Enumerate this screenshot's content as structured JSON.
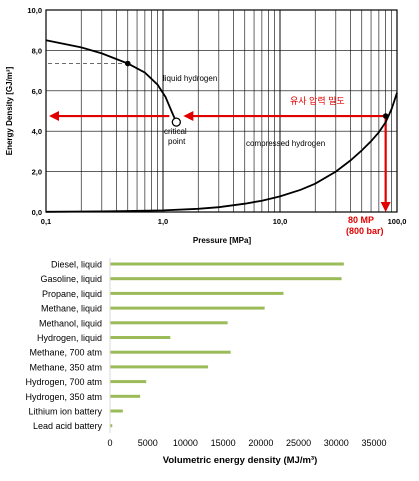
{
  "chart_data": [
    {
      "type": "line",
      "xscale": "log",
      "xlim": [
        0.1,
        100
      ],
      "ylim": [
        0,
        10
      ],
      "xlabel": "Pressure [MPa]",
      "ylabel": "Energy Density [GJ/m³]",
      "xtick_labels": [
        "0,1",
        "1,0",
        "10,0",
        "100,0"
      ],
      "ytick_labels": [
        "0,0",
        "2,0",
        "4,0",
        "6,0",
        "8,0",
        "10,0"
      ],
      "grid": true,
      "series": [
        {
          "name": "liquid hydrogen",
          "x": [
            0.1,
            0.2,
            0.3,
            0.5,
            0.7,
            0.9,
            1.05,
            1.2,
            1.3
          ],
          "y": [
            8.5,
            8.15,
            7.85,
            7.35,
            6.9,
            6.3,
            5.7,
            4.9,
            4.45
          ]
        },
        {
          "name": "compressed hydrogen",
          "x": [
            0.1,
            0.3,
            1,
            2,
            3,
            5,
            7,
            10,
            15,
            20,
            30,
            40,
            50,
            60,
            70,
            80,
            90,
            100
          ],
          "y": [
            0.01,
            0.03,
            0.08,
            0.16,
            0.24,
            0.41,
            0.56,
            0.77,
            1.1,
            1.4,
            2.0,
            2.55,
            3.05,
            3.5,
            3.95,
            4.45,
            5.1,
            5.9
          ]
        }
      ],
      "points": [
        {
          "x": 0.5,
          "y": 7.35,
          "style": "filled"
        },
        {
          "x": 1.3,
          "y": 4.45,
          "style": "open",
          "label": "critical point"
        },
        {
          "x": 80,
          "y": 4.75,
          "style": "filled"
        }
      ],
      "annotations": {
        "liquid_label": "liquid hydrogen",
        "critical_label_1": "critical",
        "critical_label_2": "point",
        "compressed_label": "compressed hydrogen",
        "density_label": "유사 압력 밀도",
        "pressure_label_1": "80 MP",
        "pressure_label_2": "(800 bar)",
        "dashed_ref_y": 7.35,
        "arrow_y": 4.75,
        "arrow_from_x": 0.1,
        "arrow_to_x": 80,
        "colors": {
          "arrow": "#e00000",
          "curve": "#000000"
        }
      }
    },
    {
      "type": "bar",
      "orientation": "horizontal",
      "categories": [
        "Diesel, liquid",
        "Gasoline, liquid",
        "Propane, liquid",
        "Methane, liquid",
        "Methanol, liquid",
        "Hydrogen, liquid",
        "Methane, 700 atm",
        "Methane, 350 atm",
        "Hydrogen, 700 atm",
        "Hydrogen, 350 atm",
        "Lithium ion battery",
        "Lead acid battery"
      ],
      "values": [
        31000,
        30700,
        23000,
        20500,
        15600,
        8000,
        16000,
        13000,
        4800,
        4000,
        1700,
        300
      ],
      "xlabel": "Volumetric energy density (MJ/m³)",
      "xlim": [
        0,
        35000
      ],
      "xticks": [
        0,
        5000,
        10000,
        15000,
        20000,
        25000,
        30000,
        35000
      ],
      "xtick_labels": [
        "0",
        "5000",
        "10000",
        "15000",
        "20000",
        "25000",
        "30000",
        "35000"
      ],
      "bar_color": "#9bbb59"
    }
  ]
}
